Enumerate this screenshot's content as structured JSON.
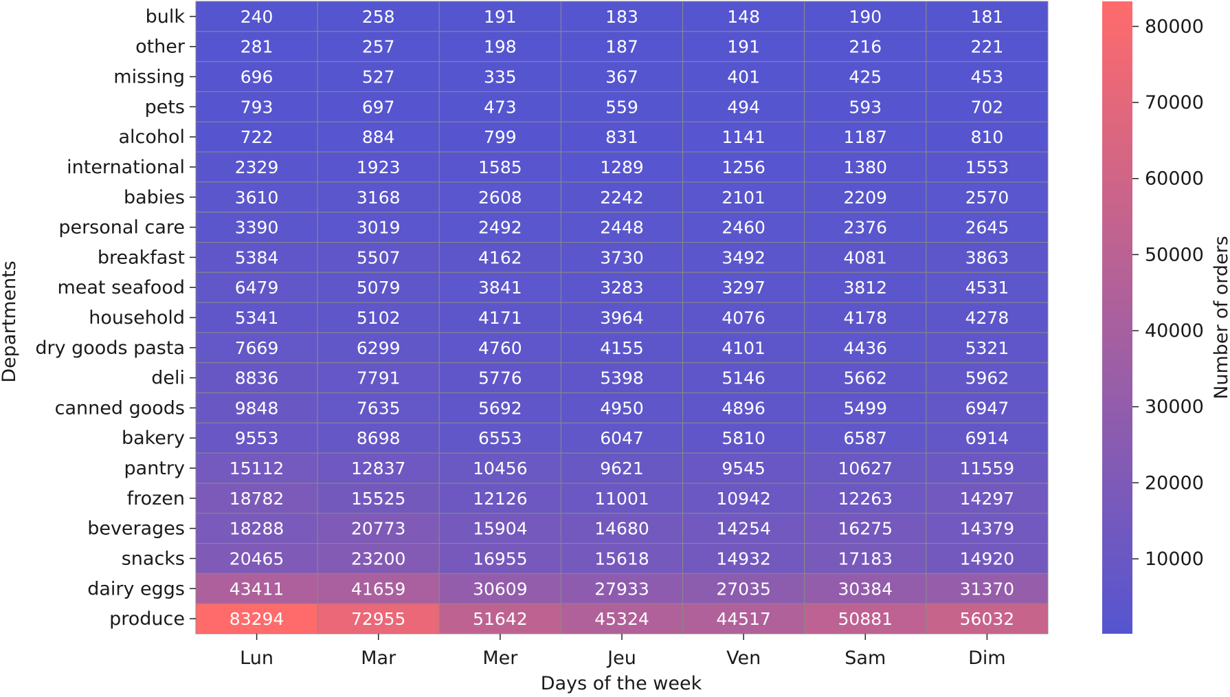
{
  "chart_data": {
    "type": "heatmap",
    "title": "",
    "xlabel": "Days of the week",
    "ylabel": "Departments",
    "x": [
      "Lun",
      "Mar",
      "Mer",
      "Jeu",
      "Ven",
      "Sam",
      "Dim"
    ],
    "y": [
      "bulk",
      "other",
      "missing",
      "pets",
      "alcohol",
      "international",
      "babies",
      "personal care",
      "breakfast",
      "meat seafood",
      "household",
      "dry goods pasta",
      "deli",
      "canned goods",
      "bakery",
      "pantry",
      "frozen",
      "beverages",
      "snacks",
      "dairy eggs",
      "produce"
    ],
    "values": [
      [
        240,
        258,
        191,
        183,
        148,
        190,
        181
      ],
      [
        281,
        257,
        198,
        187,
        191,
        216,
        221
      ],
      [
        696,
        527,
        335,
        367,
        401,
        425,
        453
      ],
      [
        793,
        697,
        473,
        559,
        494,
        593,
        702
      ],
      [
        722,
        884,
        799,
        831,
        1141,
        1187,
        810
      ],
      [
        2329,
        1923,
        1585,
        1289,
        1256,
        1380,
        1553
      ],
      [
        3610,
        3168,
        2608,
        2242,
        2101,
        2209,
        2570
      ],
      [
        3390,
        3019,
        2492,
        2448,
        2460,
        2376,
        2645
      ],
      [
        5384,
        5507,
        4162,
        3730,
        3492,
        4081,
        3863
      ],
      [
        6479,
        5079,
        3841,
        3283,
        3297,
        3812,
        4531
      ],
      [
        5341,
        5102,
        4171,
        3964,
        4076,
        4178,
        4278
      ],
      [
        7669,
        6299,
        4760,
        4155,
        4101,
        4436,
        5321
      ],
      [
        8836,
        7791,
        5776,
        5398,
        5146,
        5662,
        5962
      ],
      [
        9848,
        7635,
        5692,
        4950,
        4896,
        5499,
        6947
      ],
      [
        9553,
        8698,
        6553,
        6047,
        5810,
        6587,
        6914
      ],
      [
        15112,
        12837,
        10456,
        9621,
        9545,
        10627,
        11559
      ],
      [
        18782,
        15525,
        12126,
        11001,
        10942,
        12263,
        14297
      ],
      [
        18288,
        20773,
        15904,
        14680,
        14254,
        16275,
        14379
      ],
      [
        20465,
        23200,
        16955,
        15618,
        14932,
        17183,
        14920
      ],
      [
        43411,
        41659,
        30609,
        27933,
        27035,
        30384,
        31370
      ],
      [
        83294,
        72955,
        51642,
        45324,
        44517,
        50881,
        56032
      ]
    ],
    "colorbar": {
      "label": "Number of orders",
      "min": 148,
      "max": 83294,
      "ticks": [
        10000,
        20000,
        30000,
        40000,
        50000,
        60000,
        70000,
        80000
      ],
      "color_low": "#5555d0",
      "color_high": "#ff6b6b"
    },
    "cell_border_color": "#8a8a8a",
    "annotation_color": "#ffffff"
  }
}
